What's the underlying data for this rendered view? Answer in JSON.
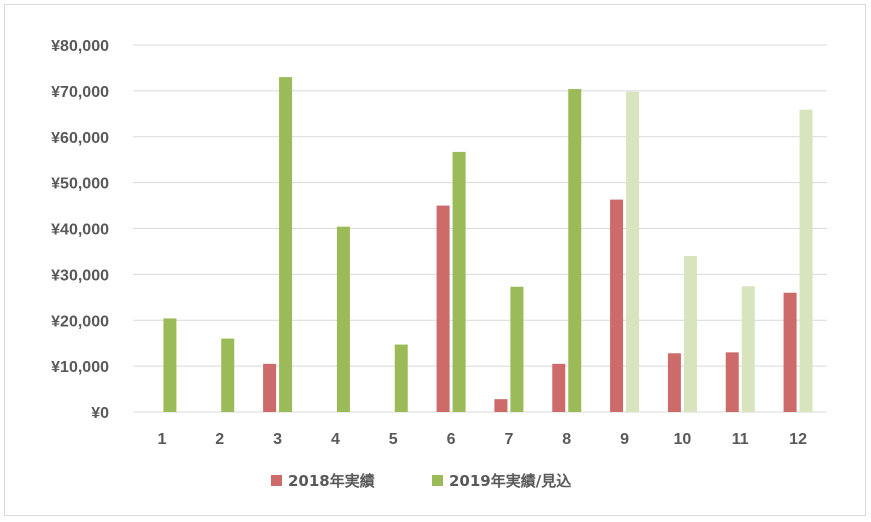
{
  "chart_data": {
    "type": "bar",
    "categories": [
      "1",
      "2",
      "3",
      "4",
      "5",
      "6",
      "7",
      "8",
      "9",
      "10",
      "11",
      "12"
    ],
    "series": [
      {
        "name": "2018年実績",
        "values": [
          null,
          null,
          10500,
          null,
          null,
          45000,
          2800,
          10500,
          46300,
          12800,
          13000,
          26000
        ],
        "color": "#cd6b6b"
      },
      {
        "name": "2019年実績/見込",
        "values": [
          20400,
          16000,
          73000,
          40400,
          14700,
          56700,
          27300,
          70400,
          69800,
          34000,
          27400,
          65900
        ],
        "color": "#9bbb59",
        "forecast_color": "#d7e4bd",
        "forecast_from_category": "9"
      }
    ],
    "ylim": [
      0,
      80000
    ],
    "yticks": [
      "¥0",
      "¥10,000",
      "¥20,000",
      "¥30,000",
      "¥40,000",
      "¥50,000",
      "¥60,000",
      "¥70,000",
      "¥80,000"
    ],
    "ytick_values": [
      0,
      10000,
      20000,
      30000,
      40000,
      50000,
      60000,
      70000,
      80000
    ],
    "grid": true,
    "legend": "bottom",
    "title": "",
    "xlabel": "",
    "ylabel": ""
  }
}
